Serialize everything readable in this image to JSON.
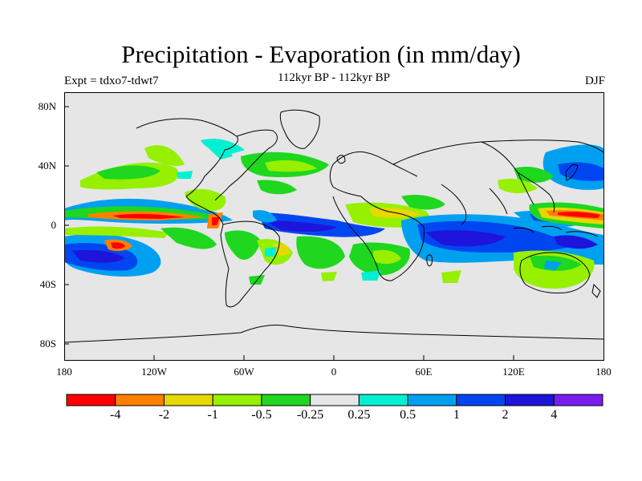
{
  "header": {
    "title": "Precipitation - Evaporation (in mm/day)",
    "subtitle": "112kyr BP - 112kyr BP",
    "expt": "Expt = tdxo7-tdwt7",
    "season": "DJF"
  },
  "axes": {
    "lat_ticks": [
      "80N",
      "40N",
      "0",
      "40S",
      "80S"
    ],
    "lon_ticks": [
      "180",
      "120W",
      "60W",
      "0",
      "60E",
      "120E",
      "180"
    ]
  },
  "colorbar": {
    "colors": [
      "#ff0000",
      "#ff8000",
      "#e6d800",
      "#96f000",
      "#1ed71e",
      "#e6e6e6",
      "#00f0d2",
      "#00a0f0",
      "#0046f0",
      "#1e14dc",
      "#7a1ef0"
    ],
    "labels": [
      "-4",
      "-2",
      "-1",
      "-0.5",
      "-0.25",
      "0.25",
      "0.5",
      "1",
      "2",
      "4"
    ]
  },
  "map_colors": {
    "background": "#e6e6e6",
    "coastline": "#000000"
  }
}
